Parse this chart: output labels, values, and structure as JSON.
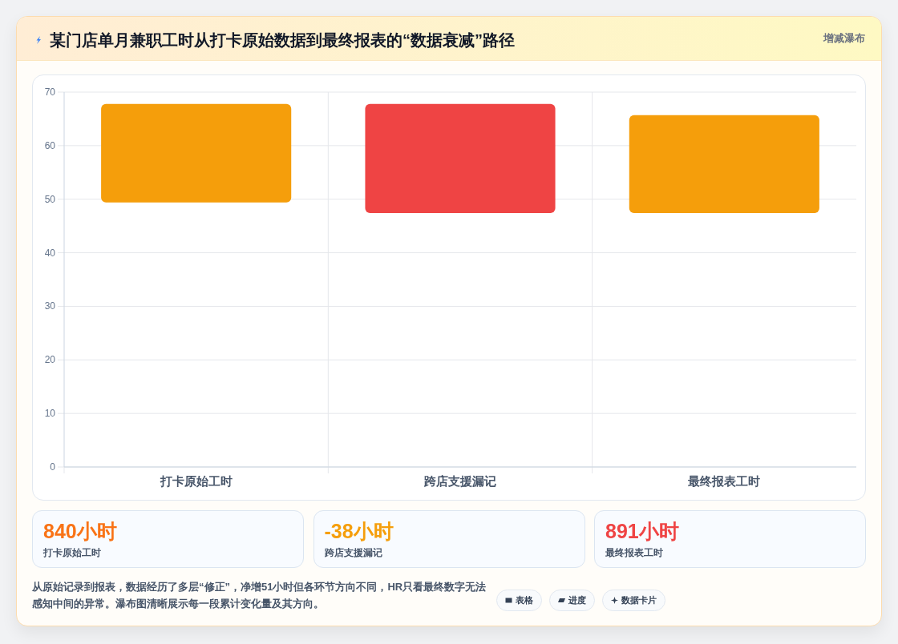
{
  "chart_data": [
    {
      "type": "bar",
      "title": "某门店单月兼职工时从打卡原始数据到最终报表的“数据衰减”路径",
      "categories": [
        "打卡原始工时",
        "跨店支援漏记",
        "最终报表工时"
      ],
      "values": [
        18.4,
        20.4,
        18.3
      ],
      "base": [
        49.4,
        47.4,
        47.4
      ],
      "colors": [
        "#f59e0b",
        "#ef4444",
        "#f59e0b"
      ],
      "ylim": [
        0,
        70
      ],
      "yticks": [
        0,
        10,
        20,
        30,
        40,
        50,
        60,
        70
      ],
      "grid": true,
      "annotations": [
        "增减瀑布",
        "从原始记录到报表，数据经历了多层“修正”，净增51小时但各环节方向不同，HR只看最终数字无法感知中间的异常。瀑布图清晰展示每一段累计变化量及其方向。",
        "表格",
        "进度",
        "数据卡片"
      ]
    },
    {
      "type": "other",
      "title": "840小时",
      "subtitle": "打卡原始工时",
      "color": "#f97316"
    },
    {
      "type": "other",
      "title": "-38小时",
      "subtitle": "跨店支援漏记",
      "color": "#f59e0b"
    },
    {
      "type": "other",
      "title": "891小时",
      "subtitle": "最终报表工时",
      "color": "#ef4444"
    }
  ]
}
